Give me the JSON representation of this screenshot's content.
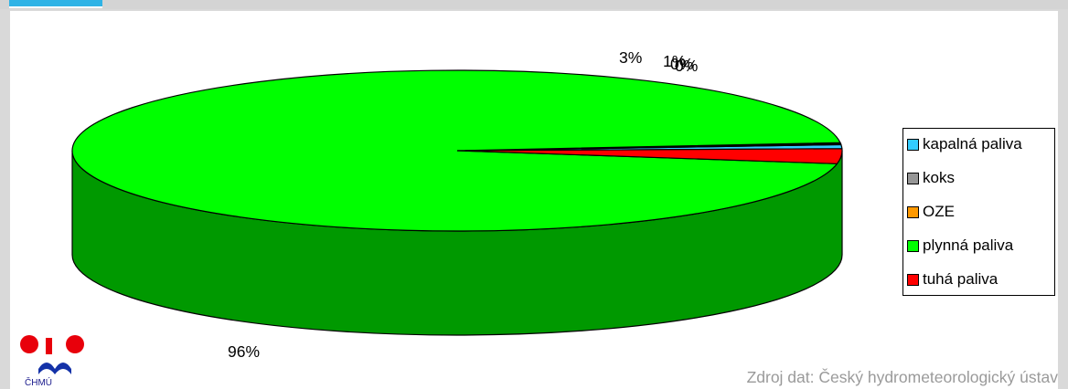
{
  "chart_data": {
    "type": "pie",
    "title": "",
    "data_labels": [
      "3%",
      "1%",
      "0%",
      "0%",
      "96%"
    ],
    "slices": [
      {
        "label": "kapalná paliva",
        "value": 0.8,
        "color": "#33ccff"
      },
      {
        "label": "koks",
        "value": 0.2,
        "color": "#969696"
      },
      {
        "label": "OZE",
        "value": 0.2,
        "color": "#ff9900"
      },
      {
        "label": "plynná paliva",
        "value": 95.8,
        "color": "#00ff00"
      },
      {
        "label": "tuhá paliva",
        "value": 3.0,
        "color": "#ff0000"
      }
    ],
    "legend_position": "right"
  },
  "legend": {
    "items": [
      {
        "label": "kapalná paliva",
        "color": "#33ccff"
      },
      {
        "label": "koks",
        "color": "#969696"
      },
      {
        "label": "OZE",
        "color": "#ff9900"
      },
      {
        "label": "plynná paliva",
        "color": "#00ff00"
      },
      {
        "label": "tuhá paliva",
        "color": "#ff0000"
      }
    ]
  },
  "footer": {
    "source": "Zdroj dat: Český hydrometeorologický ústav",
    "logo_text": "ČHMÚ"
  },
  "colors": {
    "plynna_side": "#009900",
    "accent_tab": "#2fb3e6"
  }
}
